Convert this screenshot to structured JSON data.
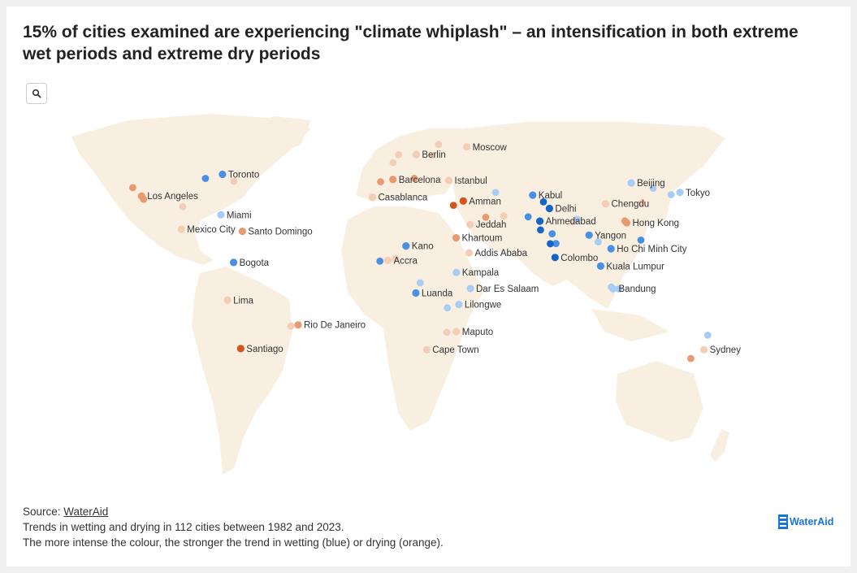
{
  "title": "15% of cities examined are experiencing \"climate whiplash\" – an intensification in both extreme wet periods and extreme dry periods",
  "search_icon": "search-icon",
  "footer": {
    "source_label": "Source: ",
    "source_link": "WaterAid",
    "line1": "Trends in wetting and drying in 112 cities between 1982 and 2023.",
    "line2": "The more intense the colour, the stronger the trend in wetting (blue) or drying (orange)."
  },
  "logo": {
    "text": "WaterAid",
    "icon": "wateraid-logo-icon"
  },
  "colors": {
    "land": "#f8efe1",
    "wet_strong": "#1565c8",
    "wet_medium": "#4a90e2",
    "wet_light": "#a8cdf5",
    "dry_light": "#f4cdb7",
    "dry_medium": "#e89a70",
    "dry_strong": "#d4541a"
  },
  "cities": [
    {
      "name": "Toronto",
      "lon": -79.4,
      "lat": 43.7,
      "trend": "wet_medium"
    },
    {
      "name": "Los Angeles",
      "lon": -118.2,
      "lat": 34.1,
      "trend": "dry_medium"
    },
    {
      "name": "Miami",
      "lon": -80.2,
      "lat": 25.8,
      "trend": "wet_light"
    },
    {
      "name": "Mexico City",
      "lon": -99.1,
      "lat": 19.4,
      "trend": "dry_light"
    },
    {
      "name": "Santo Domingo",
      "lon": -69.9,
      "lat": 18.5,
      "trend": "dry_medium"
    },
    {
      "name": "Bogota",
      "lon": -74.1,
      "lat": 4.7,
      "trend": "wet_medium"
    },
    {
      "name": "Lima",
      "lon": -77.0,
      "lat": -12.0,
      "trend": "dry_light"
    },
    {
      "name": "Rio De Janeiro",
      "lon": -43.2,
      "lat": -22.9,
      "trend": "dry_medium"
    },
    {
      "name": "Santiago",
      "lon": -70.7,
      "lat": -33.4,
      "trend": "dry_strong"
    },
    {
      "name": "Berlin",
      "lon": 13.4,
      "lat": 52.5,
      "trend": "dry_light"
    },
    {
      "name": "Moscow",
      "lon": 37.6,
      "lat": 55.8,
      "trend": "dry_light"
    },
    {
      "name": "Barcelona",
      "lon": 2.2,
      "lat": 41.4,
      "trend": "dry_medium"
    },
    {
      "name": "Istanbul",
      "lon": 29.0,
      "lat": 41.0,
      "trend": "dry_light"
    },
    {
      "name": "Casablanca",
      "lon": -7.6,
      "lat": 33.6,
      "trend": "dry_light"
    },
    {
      "name": "Amman",
      "lon": 35.9,
      "lat": 31.9,
      "trend": "dry_strong"
    },
    {
      "name": "Jeddah",
      "lon": 39.2,
      "lat": 21.5,
      "trend": "dry_light"
    },
    {
      "name": "Khartoum",
      "lon": 32.5,
      "lat": 15.6,
      "trend": "dry_medium"
    },
    {
      "name": "Addis Ababa",
      "lon": 38.7,
      "lat": 9.0,
      "trend": "dry_light"
    },
    {
      "name": "Kano",
      "lon": 8.5,
      "lat": 12.0,
      "trend": "wet_medium"
    },
    {
      "name": "Accra",
      "lon": -0.2,
      "lat": 5.6,
      "trend": "dry_light"
    },
    {
      "name": "Kampala",
      "lon": 32.6,
      "lat": 0.3,
      "trend": "wet_light"
    },
    {
      "name": "Dar Es Salaam",
      "lon": 39.3,
      "lat": -6.8,
      "trend": "wet_light"
    },
    {
      "name": "Luanda",
      "lon": 13.2,
      "lat": -8.8,
      "trend": "wet_medium"
    },
    {
      "name": "Lilongwe",
      "lon": 33.8,
      "lat": -13.9,
      "trend": "wet_light"
    },
    {
      "name": "Maputo",
      "lon": 32.6,
      "lat": -25.9,
      "trend": "dry_light"
    },
    {
      "name": "Cape Town",
      "lon": 18.4,
      "lat": -33.9,
      "trend": "dry_light"
    },
    {
      "name": "Kabul",
      "lon": 69.2,
      "lat": 34.5,
      "trend": "wet_medium"
    },
    {
      "name": "Delhi",
      "lon": 77.2,
      "lat": 28.6,
      "trend": "wet_strong"
    },
    {
      "name": "Ahmedabad",
      "lon": 72.6,
      "lat": 23.0,
      "trend": "wet_strong"
    },
    {
      "name": "Colombo",
      "lon": 79.9,
      "lat": 6.9,
      "trend": "wet_strong"
    },
    {
      "name": "Yangon",
      "lon": 96.2,
      "lat": 16.8,
      "trend": "wet_medium"
    },
    {
      "name": "Beijing",
      "lon": 116.4,
      "lat": 39.9,
      "trend": "wet_light"
    },
    {
      "name": "Chengdu",
      "lon": 104.1,
      "lat": 30.7,
      "trend": "dry_light"
    },
    {
      "name": "Tokyo",
      "lon": 139.7,
      "lat": 35.7,
      "trend": "wet_light"
    },
    {
      "name": "Hong Kong",
      "lon": 114.2,
      "lat": 22.3,
      "trend": "dry_medium"
    },
    {
      "name": "Ho Chi Minh City",
      "lon": 106.7,
      "lat": 10.8,
      "trend": "wet_medium"
    },
    {
      "name": "Kuala Lumpur",
      "lon": 101.7,
      "lat": 3.1,
      "trend": "wet_medium"
    },
    {
      "name": "Bandung",
      "lon": 107.6,
      "lat": -6.9,
      "trend": "wet_light"
    },
    {
      "name": "Sydney",
      "lon": 151.2,
      "lat": -33.9,
      "trend": "dry_light"
    }
  ],
  "unlabeled_cities": [
    {
      "lon": -87.6,
      "lat": 41.9,
      "trend": "wet_medium"
    },
    {
      "lon": -74.0,
      "lat": 40.7,
      "trend": "dry_light"
    },
    {
      "lon": -122.4,
      "lat": 37.8,
      "trend": "dry_medium"
    },
    {
      "lon": -117.2,
      "lat": 32.7,
      "trend": "dry_medium"
    },
    {
      "lon": -98.5,
      "lat": 29.4,
      "trend": "dry_light"
    },
    {
      "lon": -46.6,
      "lat": -23.5,
      "trend": "dry_light"
    },
    {
      "lon": -3.7,
      "lat": 40.4,
      "trend": "dry_medium"
    },
    {
      "lon": 2.3,
      "lat": 48.9,
      "trend": "dry_light"
    },
    {
      "lon": 4.9,
      "lat": 52.4,
      "trend": "dry_light"
    },
    {
      "lon": 21.0,
      "lat": 52.2,
      "trend": "dry_light"
    },
    {
      "lon": 12.5,
      "lat": 41.9,
      "trend": "dry_medium"
    },
    {
      "lon": 24.1,
      "lat": 56.9,
      "trend": "dry_light"
    },
    {
      "lon": 31.2,
      "lat": 30.0,
      "trend": "dry_strong"
    },
    {
      "lon": 46.7,
      "lat": 24.7,
      "trend": "dry_medium"
    },
    {
      "lon": 51.4,
      "lat": 35.7,
      "trend": "wet_light"
    },
    {
      "lon": 55.3,
      "lat": 25.3,
      "trend": "dry_light"
    },
    {
      "lon": -4.0,
      "lat": 5.3,
      "trend": "wet_medium"
    },
    {
      "lon": 3.4,
      "lat": 6.5,
      "trend": "dry_light"
    },
    {
      "lon": 15.3,
      "lat": -4.3,
      "trend": "wet_light"
    },
    {
      "lon": 28.0,
      "lat": -26.2,
      "trend": "dry_light"
    },
    {
      "lon": 28.3,
      "lat": -15.4,
      "trend": "wet_light"
    },
    {
      "lon": 67.0,
      "lat": 24.9,
      "trend": "wet_medium"
    },
    {
      "lon": 74.3,
      "lat": 31.5,
      "trend": "wet_strong"
    },
    {
      "lon": 72.9,
      "lat": 19.1,
      "trend": "wet_strong"
    },
    {
      "lon": 78.5,
      "lat": 17.4,
      "trend": "wet_medium"
    },
    {
      "lon": 80.3,
      "lat": 13.1,
      "trend": "wet_medium"
    },
    {
      "lon": 77.6,
      "lat": 12.97,
      "trend": "wet_strong"
    },
    {
      "lon": 88.4,
      "lat": 22.6,
      "trend": "dry_light"
    },
    {
      "lon": 90.4,
      "lat": 23.8,
      "trend": "wet_light"
    },
    {
      "lon": 100.5,
      "lat": 13.8,
      "trend": "wet_light"
    },
    {
      "lon": 121.5,
      "lat": 31.2,
      "trend": "dry_light"
    },
    {
      "lon": 113.3,
      "lat": 23.1,
      "trend": "dry_medium"
    },
    {
      "lon": 126.9,
      "lat": 37.6,
      "trend": "wet_light"
    },
    {
      "lon": 135.5,
      "lat": 34.7,
      "trend": "wet_light"
    },
    {
      "lon": 121.0,
      "lat": 14.6,
      "trend": "wet_medium"
    },
    {
      "lon": 106.8,
      "lat": -6.2,
      "trend": "wet_light"
    },
    {
      "lon": 110.4,
      "lat": -7.0,
      "trend": "wet_light"
    },
    {
      "lon": 144.9,
      "lat": -37.8,
      "trend": "dry_medium"
    },
    {
      "lon": 153.0,
      "lat": -27.5,
      "trend": "wet_light"
    }
  ]
}
